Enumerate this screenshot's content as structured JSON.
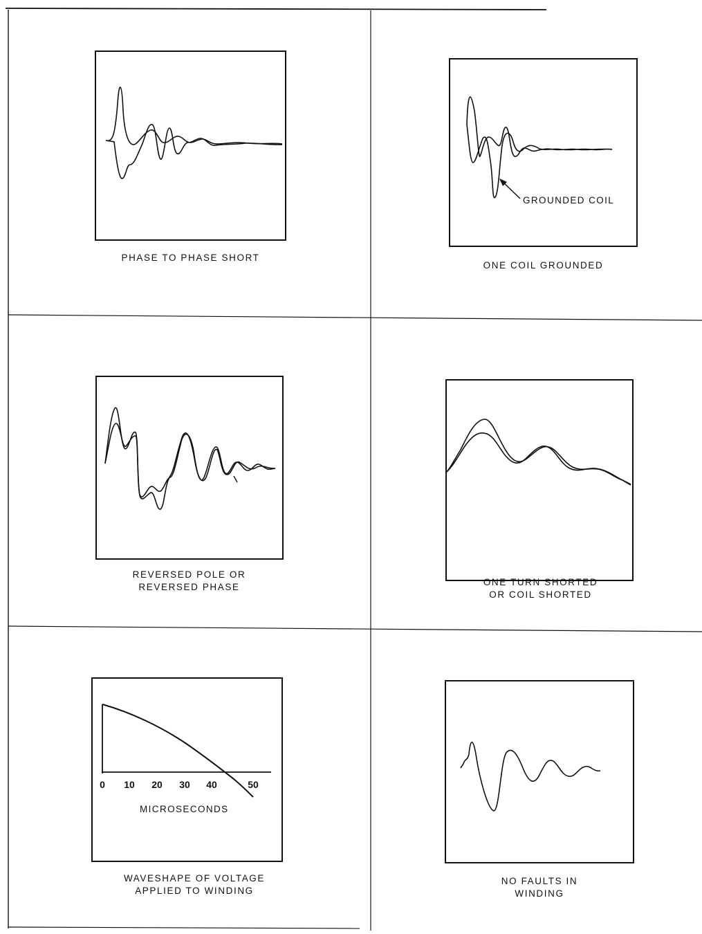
{
  "panels": [
    {
      "id": "phase-to-phase-short",
      "caption": [
        "PHASE TO PHASE SHORT"
      ]
    },
    {
      "id": "one-coil-grounded",
      "caption": [
        "ONE COIL GROUNDED"
      ],
      "annotation": "GROUNDED COIL"
    },
    {
      "id": "reversed-pole",
      "caption": [
        "REVERSED POLE OR",
        "REVERSED PHASE"
      ]
    },
    {
      "id": "one-turn-shorted",
      "caption": [
        "ONE TURN SHORTED",
        "OR COIL SHORTED"
      ]
    },
    {
      "id": "applied-waveshape",
      "caption": [
        "WAVESHAPE OF VOLTAGE",
        "APPLIED TO WINDING"
      ]
    },
    {
      "id": "no-faults",
      "caption": [
        "NO FAULTS IN",
        "WINDING"
      ]
    }
  ],
  "waveshape_axis": {
    "xlabel": "MICROSECONDS",
    "ticks": [
      "0",
      "10",
      "20",
      "30",
      "40",
      "50"
    ]
  }
}
